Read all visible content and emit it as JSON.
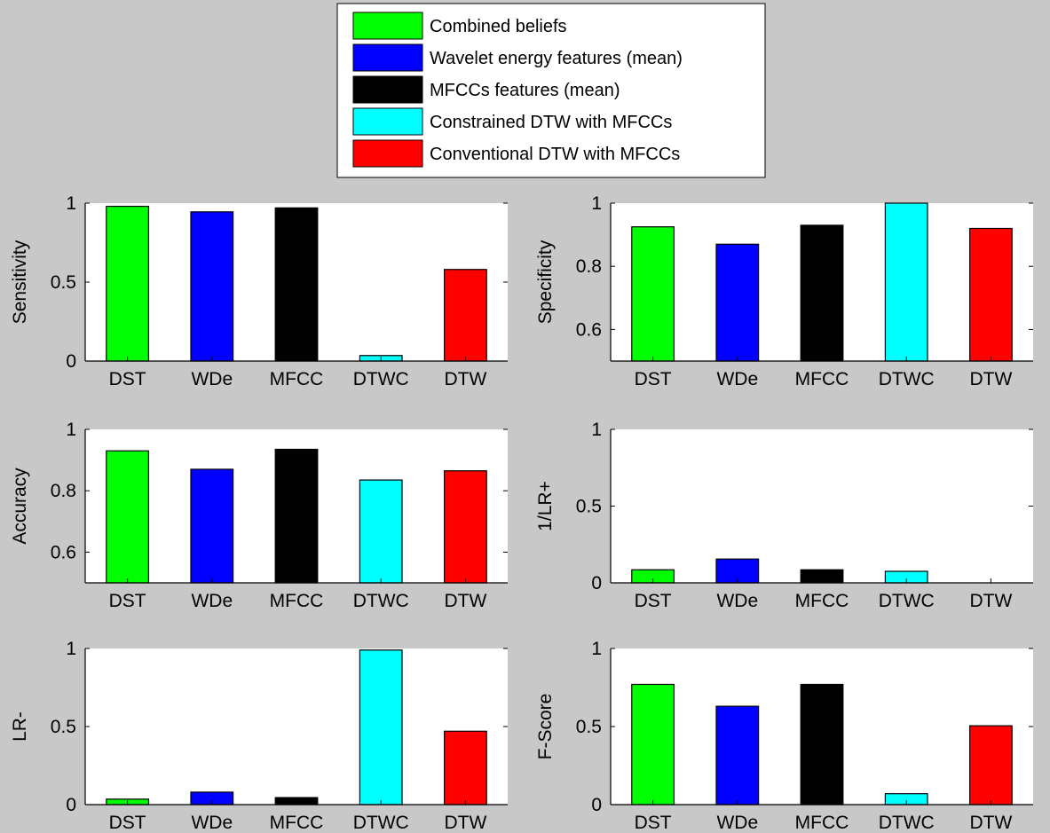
{
  "legend": {
    "placement": "top-center",
    "entries": [
      {
        "label": "Combined beliefs",
        "color": "#00ff00"
      },
      {
        "label": "Wavelet energy features (mean)",
        "color": "#0000ff"
      },
      {
        "label": "MFCCs features (mean)",
        "color": "#000000"
      },
      {
        "label": "Constrained DTW with MFCCs",
        "color": "#00ffff"
      },
      {
        "label": "Conventional DTW with MFCCs",
        "color": "#ff0000"
      }
    ]
  },
  "chart_data": [
    {
      "type": "bar",
      "categories": [
        "DST",
        "WDe",
        "MFCC",
        "DTWC",
        "DTW"
      ],
      "values": [
        0.98,
        0.945,
        0.97,
        0.035,
        0.58
      ],
      "colors": [
        "#00ff00",
        "#0000ff",
        "#000000",
        "#00ffff",
        "#ff0000"
      ],
      "ylabel": "Sensitivity",
      "ylim": [
        0,
        1
      ],
      "yticks": [
        0,
        0.5,
        1
      ],
      "ytick_labels": [
        "0",
        "0.5",
        "1"
      ]
    },
    {
      "type": "bar",
      "categories": [
        "DST",
        "WDe",
        "MFCC",
        "DTWC",
        "DTW"
      ],
      "values": [
        0.925,
        0.87,
        0.93,
        1.0,
        0.92
      ],
      "colors": [
        "#00ff00",
        "#0000ff",
        "#000000",
        "#00ffff",
        "#ff0000"
      ],
      "ylabel": "Specificity",
      "ylim": [
        0.5,
        1
      ],
      "yticks": [
        0.6,
        0.8,
        1
      ],
      "ytick_labels": [
        "0.6",
        "0.8",
        "1"
      ]
    },
    {
      "type": "bar",
      "categories": [
        "DST",
        "WDe",
        "MFCC",
        "DTWC",
        "DTW"
      ],
      "values": [
        0.93,
        0.87,
        0.935,
        0.835,
        0.865
      ],
      "colors": [
        "#00ff00",
        "#0000ff",
        "#000000",
        "#00ffff",
        "#ff0000"
      ],
      "ylabel": "Accuracy",
      "ylim": [
        0.5,
        1
      ],
      "yticks": [
        0.6,
        0.8,
        1
      ],
      "ytick_labels": [
        "0.6",
        "0.8",
        "1"
      ]
    },
    {
      "type": "bar",
      "categories": [
        "DST",
        "WDe",
        "MFCC",
        "DTWC",
        "DTW"
      ],
      "values": [
        0.085,
        0.155,
        0.085,
        0.075,
        0
      ],
      "colors": [
        "#00ff00",
        "#0000ff",
        "#000000",
        "#00ffff",
        "#ff0000"
      ],
      "ylabel": "1/LR+",
      "ylim": [
        0,
        1
      ],
      "yticks": [
        0,
        0.5,
        1
      ],
      "ytick_labels": [
        "0",
        "0.5",
        "1"
      ]
    },
    {
      "type": "bar",
      "categories": [
        "DST",
        "WDe",
        "MFCC",
        "DTWC",
        "DTW"
      ],
      "values": [
        0.035,
        0.08,
        0.045,
        0.99,
        0.47
      ],
      "colors": [
        "#00ff00",
        "#0000ff",
        "#000000",
        "#00ffff",
        "#ff0000"
      ],
      "ylabel": "LR-",
      "ylim": [
        0,
        1
      ],
      "yticks": [
        0,
        0.5,
        1
      ],
      "ytick_labels": [
        "0",
        "0.5",
        "1"
      ]
    },
    {
      "type": "bar",
      "categories": [
        "DST",
        "WDe",
        "MFCC",
        "DTWC",
        "DTW"
      ],
      "values": [
        0.77,
        0.63,
        0.77,
        0.07,
        0.505
      ],
      "colors": [
        "#00ff00",
        "#0000ff",
        "#000000",
        "#00ffff",
        "#ff0000"
      ],
      "ylabel": "F-Score",
      "ylim": [
        0,
        1
      ],
      "yticks": [
        0,
        0.5,
        1
      ],
      "ytick_labels": [
        "0",
        "0.5",
        "1"
      ]
    }
  ]
}
